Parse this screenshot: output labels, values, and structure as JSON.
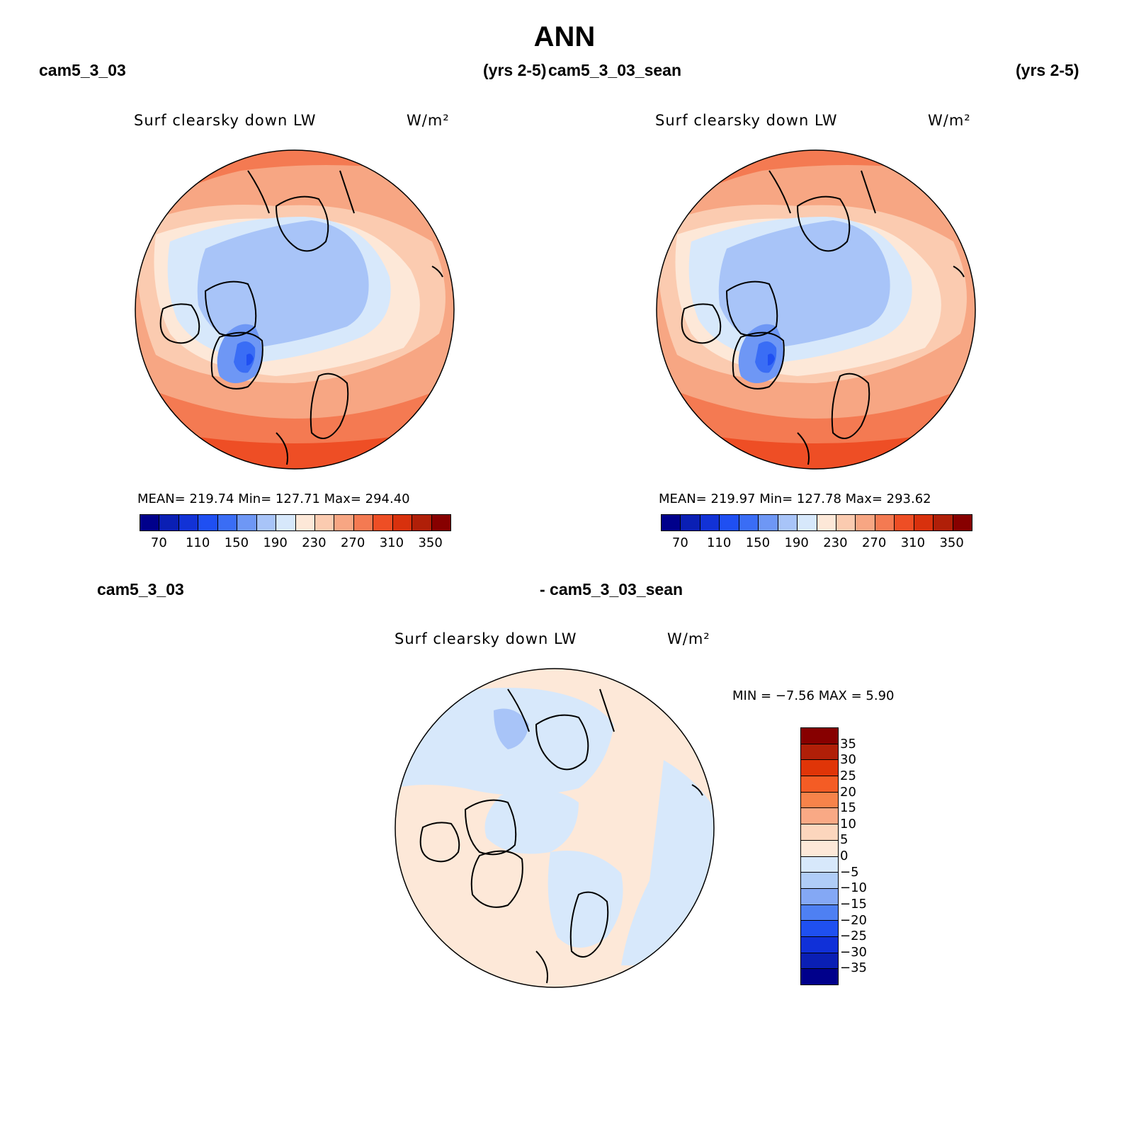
{
  "page": {
    "title": "ANN",
    "header_left": "cam5_3_03",
    "header_left_years": "(yrs 2-5)",
    "header_right": "cam5_3_03_sean",
    "header_right_years": "(yrs 2-5)",
    "diff_left": "cam5_3_03",
    "diff_right": "- cam5_3_03_sean"
  },
  "panels": [
    {
      "variable": "Surf clearsky down LW",
      "units": "W/m²",
      "stats": "MEAN= 219.74   Min= 127.71   Max= 294.40",
      "colorbar_labels": [
        "70",
        "110",
        "150",
        "190",
        "230",
        "270",
        "310",
        "350"
      ]
    },
    {
      "variable": "Surf clearsky down LW",
      "units": "W/m²",
      "stats": "MEAN= 219.97   Min= 127.78   Max= 293.62",
      "colorbar_labels": [
        "70",
        "110",
        "150",
        "190",
        "230",
        "270",
        "310",
        "350"
      ]
    }
  ],
  "diff_panel": {
    "variable": "Surf clearsky down LW",
    "units": "W/m²",
    "stats": "MIN =   −7.56 MAX =    5.90",
    "colorbar_labels": [
      "35",
      "30",
      "25",
      "20",
      "15",
      "10",
      "5",
      "0",
      "−5",
      "−10",
      "−15",
      "−20",
      "−25",
      "−30",
      "−35"
    ]
  },
  "colors": {
    "abs_scale": [
      "#00008b",
      "#0a1fb4",
      "#1232d6",
      "#1f4ff2",
      "#3a6df5",
      "#6e97f5",
      "#a8c4f8",
      "#d7e8fb",
      "#fde8d8",
      "#fbcbb0",
      "#f7a683",
      "#f47a52",
      "#ee4e25",
      "#d8310d",
      "#b01f08",
      "#870000"
    ],
    "diff_scale": [
      "#870000",
      "#b01f08",
      "#e03508",
      "#f45c25",
      "#f7834a",
      "#f9a985",
      "#fcd6bd",
      "#fde8d8",
      "#d7e8fb",
      "#b0cdf7",
      "#84a8f5",
      "#4e80f3",
      "#1f50f0",
      "#1030d8",
      "#0a1fb4",
      "#00008b"
    ]
  }
}
